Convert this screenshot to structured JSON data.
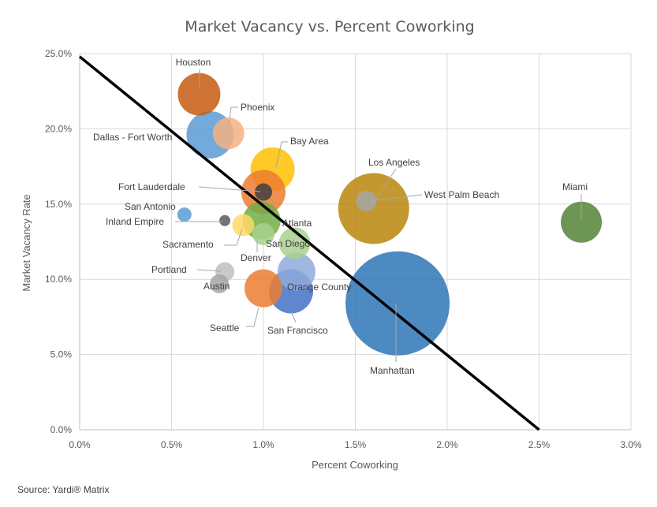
{
  "chart_data": {
    "type": "scatter",
    "subtype": "bubble",
    "title": "Market Vacancy vs. Percent Coworking",
    "xlabel": "Percent Coworking",
    "ylabel": "Market Vacancy Rate",
    "xlim": [
      0,
      3.0
    ],
    "ylim": [
      0,
      25.0
    ],
    "x_unit": "%",
    "y_unit": "%",
    "grid": true,
    "x_ticks": [
      "0.0%",
      "0.5%",
      "1.0%",
      "1.5%",
      "2.0%",
      "2.5%",
      "3.0%"
    ],
    "y_ticks": [
      "0.0%",
      "5.0%",
      "10.0%",
      "15.0%",
      "20.0%",
      "25.0%"
    ],
    "trendline": {
      "color": "#000000",
      "x": [
        0,
        2.5
      ],
      "y": [
        24.8,
        0
      ]
    },
    "points": [
      {
        "name": "Houston",
        "x": 0.65,
        "y": 22.3,
        "size": 27,
        "color": "#c55a11"
      },
      {
        "name": "Phoenix",
        "x": 0.81,
        "y": 19.7,
        "size": 20,
        "color": "#f4b183"
      },
      {
        "name": "Dallas - Fort Worth",
        "x": 0.71,
        "y": 19.6,
        "size": 30,
        "color": "#5b9bd5"
      },
      {
        "name": "Bay Area",
        "x": 1.05,
        "y": 17.3,
        "size": 28,
        "color": "#ffc000"
      },
      {
        "name": "Fort Lauderdale",
        "x": 1.0,
        "y": 15.8,
        "size": 28,
        "color": "#ed7d31"
      },
      {
        "name": "Fort Lauderdale (center)",
        "x": 1.0,
        "y": 15.8,
        "size": 11,
        "color": "#404040"
      },
      {
        "name": "Los Angeles",
        "x": 1.6,
        "y": 14.7,
        "size": 45,
        "color": "#b8860b"
      },
      {
        "name": "West Palm Beach",
        "x": 1.56,
        "y": 15.2,
        "size": 13,
        "color": "#a6a6a6"
      },
      {
        "name": "Miami",
        "x": 2.73,
        "y": 13.8,
        "size": 26,
        "color": "#548235"
      },
      {
        "name": "San Antonio",
        "x": 0.57,
        "y": 14.3,
        "size": 9,
        "color": "#5b9bd5"
      },
      {
        "name": "Inland Empire",
        "x": 0.79,
        "y": 13.9,
        "size": 7,
        "color": "#595959"
      },
      {
        "name": "Sacramento",
        "x": 0.89,
        "y": 13.6,
        "size": 14,
        "color": "#ffd966"
      },
      {
        "name": "Atlanta",
        "x": 0.99,
        "y": 13.9,
        "size": 24,
        "color": "#70ad47"
      },
      {
        "name": "San Diego",
        "x": 1.17,
        "y": 12.4,
        "size": 20,
        "color": "#a9d18e"
      },
      {
        "name": "Denver",
        "x": 1.0,
        "y": 13.0,
        "size": 14,
        "color": "#a9d18e"
      },
      {
        "name": "Portland",
        "x": 0.79,
        "y": 10.5,
        "size": 12,
        "color": "#bfbfbf"
      },
      {
        "name": "Austin",
        "x": 0.76,
        "y": 9.7,
        "size": 12,
        "color": "#a6a6a6"
      },
      {
        "name": "Orange County",
        "x": 1.18,
        "y": 10.5,
        "size": 24,
        "color": "#8faadc"
      },
      {
        "name": "San Francisco",
        "x": 1.15,
        "y": 9.2,
        "size": 28,
        "color": "#4472c4"
      },
      {
        "name": "Seattle",
        "x": 1.0,
        "y": 9.4,
        "size": 24,
        "color": "#ed7d31"
      },
      {
        "name": "Manhattan",
        "x": 1.73,
        "y": 8.4,
        "size": 66,
        "color": "#2e75b6"
      }
    ]
  },
  "source_text": "Source: Yardi® Matrix"
}
